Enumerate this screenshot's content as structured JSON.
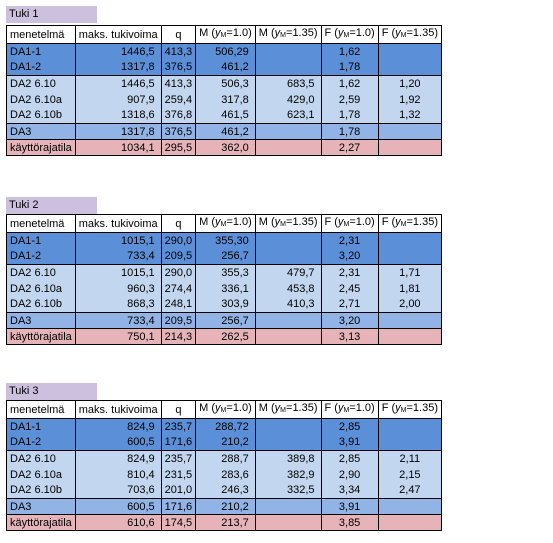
{
  "colors": {
    "title_bg": "#cdc0de",
    "dark_blue": "#5b8fd8",
    "light_blue": "#c3d6ef",
    "mid_blue": "#91b3e6",
    "pink": "#e6b4b8",
    "header_bg": "#ffffff"
  },
  "headers": {
    "method": "menetelmä",
    "force": "maks. tukivoima",
    "q": "q",
    "m1_prefix": "M (",
    "m1_sym": "y",
    "m1_sub": "M",
    "m1_suffix": "=1.0)",
    "m2_prefix": "M (",
    "m2_sym": "y",
    "m2_sub": "M",
    "m2_suffix": "=1.35)",
    "f1_prefix": "F (",
    "f1_sym": "y",
    "f1_sub": "M",
    "f1_suffix": "=1.0)",
    "f2_prefix": "F (",
    "f2_sym": "y",
    "f2_sub": "M",
    "f2_suffix": "=1.35)"
  },
  "tables": [
    {
      "title": "Tuki 1",
      "rows": [
        [
          "DA1-1",
          "1446,5",
          "413,3",
          "506,29",
          "",
          "1,62",
          ""
        ],
        [
          "DA1-2",
          "1317,8",
          "376,5",
          "461,2",
          "",
          "1,78",
          ""
        ],
        [
          "DA2 6.10",
          "1446,5",
          "413,3",
          "506,3",
          "683,5",
          "1,62",
          "1,20"
        ],
        [
          "DA2 6.10a",
          "907,9",
          "259,4",
          "317,8",
          "429,0",
          "2,59",
          "1,92"
        ],
        [
          "DA2 6.10b",
          "1318,6",
          "376,8",
          "461,5",
          "623,1",
          "1,78",
          "1,32"
        ],
        [
          "DA3",
          "1317,8",
          "376,5",
          "461,2",
          "",
          "1,78",
          ""
        ],
        [
          "käyttörajatila",
          "1034,1",
          "295,5",
          "362,0",
          "",
          "2,27",
          ""
        ]
      ]
    },
    {
      "title": "Tuki 2",
      "rows": [
        [
          "DA1-1",
          "1015,1",
          "290,0",
          "355,30",
          "",
          "2,31",
          ""
        ],
        [
          "DA1-2",
          "733,4",
          "209,5",
          "256,7",
          "",
          "3,20",
          ""
        ],
        [
          "DA2 6.10",
          "1015,1",
          "290,0",
          "355,3",
          "479,7",
          "2,31",
          "1,71"
        ],
        [
          "DA2 6.10a",
          "960,3",
          "274,4",
          "336,1",
          "453,8",
          "2,45",
          "1,81"
        ],
        [
          "DA2 6.10b",
          "868,3",
          "248,1",
          "303,9",
          "410,3",
          "2,71",
          "2,00"
        ],
        [
          "DA3",
          "733,4",
          "209,5",
          "256,7",
          "",
          "3,20",
          ""
        ],
        [
          "käyttörajatila",
          "750,1",
          "214,3",
          "262,5",
          "",
          "3,13",
          ""
        ]
      ]
    },
    {
      "title": "Tuki 3",
      "rows": [
        [
          "DA1-1",
          "824,9",
          "235,7",
          "288,72",
          "",
          "2,85",
          ""
        ],
        [
          "DA1-2",
          "600,5",
          "171,6",
          "210,2",
          "",
          "3,91",
          ""
        ],
        [
          "DA2 6.10",
          "824,9",
          "235,7",
          "288,7",
          "389,8",
          "2,85",
          "2,11"
        ],
        [
          "DA2 6.10a",
          "810,4",
          "231,5",
          "283,6",
          "382,9",
          "2,90",
          "2,15"
        ],
        [
          "DA2 6.10b",
          "703,6",
          "201,0",
          "246,3",
          "332,5",
          "3,34",
          "2,47"
        ],
        [
          "DA3",
          "600,5",
          "171,6",
          "210,2",
          "",
          "3,91",
          ""
        ],
        [
          "käyttörajatila",
          "610,6",
          "174,5",
          "213,7",
          "",
          "3,85",
          ""
        ]
      ]
    }
  ]
}
